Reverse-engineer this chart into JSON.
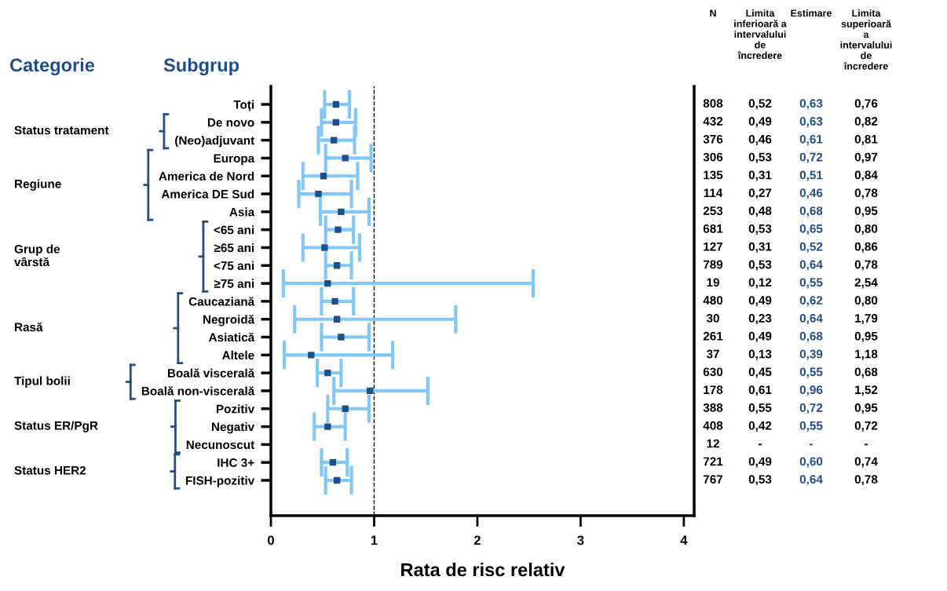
{
  "chart_data": {
    "type": "scatter",
    "orientation": "horizontal",
    "xlabel": "Rata de risc relativ",
    "categories": [
      "Toți",
      "De novo",
      "(Neo)adjuvant",
      "Europa",
      "America de Nord",
      "America DE Sud",
      "Asia",
      "<65 ani",
      "≥65 ani",
      "<75 ani",
      "≥75 ani",
      "Caucaziană",
      "Negroidă",
      "Asiatică",
      "Altele",
      "Boală viscerală",
      "Boală non-viscerală",
      "Pozitiv",
      "Negativ",
      "Necunoscut",
      "IHC 3+",
      "FISH-pozitiv"
    ],
    "series": [
      {
        "color": "#1f4e8c",
        "values": [
          0.63,
          0.63,
          0.61,
          0.72,
          0.51,
          0.46,
          0.68,
          0.65,
          0.52,
          0.64,
          0.55,
          0.62,
          0.64,
          0.68,
          0.39,
          0.55,
          0.96,
          0.72,
          0.55,
          null,
          0.6,
          0.64
        ],
        "errors": [
          [
            0.52,
            0.76
          ],
          [
            0.49,
            0.82
          ],
          [
            0.46,
            0.81
          ],
          [
            0.53,
            0.97
          ],
          [
            0.31,
            0.84
          ],
          [
            0.27,
            0.78
          ],
          [
            0.48,
            0.95
          ],
          [
            0.53,
            0.8
          ],
          [
            0.31,
            0.86
          ],
          [
            0.53,
            0.78
          ],
          [
            0.12,
            2.54
          ],
          [
            0.49,
            0.8
          ],
          [
            0.23,
            1.79
          ],
          [
            0.49,
            0.95
          ],
          [
            0.13,
            1.18
          ],
          [
            0.45,
            0.68
          ],
          [
            0.61,
            1.52
          ],
          [
            0.55,
            0.95
          ],
          [
            0.42,
            0.72
          ],
          null,
          [
            0.49,
            0.74
          ],
          [
            0.53,
            0.78
          ]
        ],
        "value_labels": [
          "0,63",
          "0,63",
          "0,61",
          "0,72",
          "0,51",
          "0,46",
          "0,68",
          "0,65",
          "0,52",
          "0,64",
          "0,55",
          "0,62",
          "0,64",
          "0,68",
          "0,39",
          "0,55",
          "0,96",
          "0,72",
          "0,55",
          "-",
          "0,60",
          "0,64"
        ]
      }
    ],
    "marker": "square",
    "xlim": [
      0,
      4.1
    ],
    "xticks": [
      0,
      1,
      2,
      3,
      4
    ],
    "ref_lines": [
      {
        "axis": "x",
        "value": 1,
        "line_style": "dashed",
        "color": "#000000"
      }
    ],
    "grid": false,
    "legend": false,
    "annotations": [
      "Categorie",
      "Subgrup",
      "Status tratament",
      "Regiune",
      "Grup de\nvârstă",
      "Rasă",
      "Tipul bolii",
      "Status ER/PgR",
      "Status HER2",
      "N",
      "Limita\ninferioară a\nintervalului\nde\nîncredere",
      "Estimare",
      "Limita\nsuperioară\na\nintervalului\nde\nîncredere",
      "808",
      "432",
      "376",
      "306",
      "135",
      "114",
      "253",
      "681",
      "127",
      "789",
      "19",
      "480",
      "30",
      "261",
      "37",
      "630",
      "178",
      "388",
      "408",
      "12",
      "721",
      "767",
      "0,52",
      "0,49",
      "0,46",
      "0,53",
      "0,31",
      "0,27",
      "0,48",
      "0,53",
      "0,31",
      "0,53",
      "0,12",
      "0,49",
      "0,23",
      "0,49",
      "0,13",
      "0,45",
      "0,61",
      "0,55",
      "0,42",
      "-",
      "0,49",
      "0,53",
      "0,76",
      "0,82",
      "0,81",
      "0,97",
      "0,84",
      "0,78",
      "0,95",
      "0,80",
      "0,86",
      "0,78",
      "2,54",
      "0,80",
      "1,79",
      "0,95",
      "1,18",
      "0,68",
      "1,52",
      "0,95",
      "0,72",
      "-",
      "0,74",
      "0,78"
    ]
  }
}
